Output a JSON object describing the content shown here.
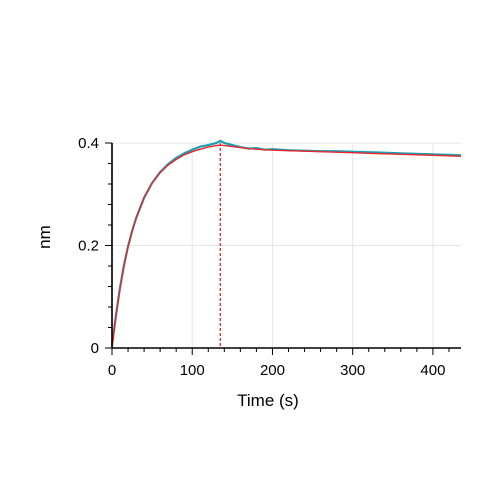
{
  "chart_data": {
    "type": "line",
    "title": "",
    "xlabel": "Time (s)",
    "ylabel": "nm",
    "xlim": [
      0,
      435
    ],
    "ylim": [
      0,
      0.4
    ],
    "x_ticks": [
      0,
      100,
      200,
      300,
      400
    ],
    "x_tick_labels": [
      "0",
      "100",
      "200",
      "300",
      "400"
    ],
    "y_ticks": [
      0,
      0.2,
      0.4
    ],
    "y_tick_labels": [
      "0",
      "0.2",
      "0.4"
    ],
    "grid": true,
    "legend": "none",
    "series": [
      {
        "color": "#1e9fb0",
        "style": "solid",
        "x": [
          0,
          5,
          10,
          15,
          20,
          25,
          30,
          40,
          50,
          60,
          70,
          80,
          90,
          100,
          110,
          120,
          130,
          135,
          140,
          150,
          160,
          170,
          180,
          190,
          200,
          220,
          240,
          260,
          280,
          300,
          320,
          340,
          360,
          380,
          400,
          420,
          435
        ],
        "values": [
          0.005,
          0.065,
          0.118,
          0.162,
          0.198,
          0.228,
          0.253,
          0.293,
          0.322,
          0.343,
          0.359,
          0.371,
          0.38,
          0.387,
          0.393,
          0.396,
          0.4,
          0.404,
          0.4,
          0.396,
          0.392,
          0.389,
          0.39,
          0.387,
          0.388,
          0.386,
          0.385,
          0.384,
          0.384,
          0.383,
          0.382,
          0.381,
          0.38,
          0.379,
          0.378,
          0.377,
          0.376
        ]
      },
      {
        "color": "#e8262b",
        "style": "solid",
        "x": [
          0,
          5,
          10,
          15,
          20,
          25,
          30,
          40,
          50,
          60,
          70,
          80,
          90,
          100,
          110,
          120,
          130,
          135,
          140,
          150,
          160,
          170,
          180,
          190,
          200,
          220,
          240,
          260,
          280,
          300,
          320,
          340,
          360,
          380,
          400,
          420,
          435
        ],
        "values": [
          0.0,
          0.062,
          0.115,
          0.16,
          0.197,
          0.228,
          0.254,
          0.294,
          0.322,
          0.342,
          0.357,
          0.368,
          0.377,
          0.383,
          0.388,
          0.392,
          0.395,
          0.396,
          0.395,
          0.393,
          0.391,
          0.389,
          0.388,
          0.387,
          0.386,
          0.385,
          0.384,
          0.383,
          0.382,
          0.381,
          0.38,
          0.379,
          0.378,
          0.377,
          0.376,
          0.375,
          0.374
        ]
      }
    ],
    "vlines": [
      {
        "x": 0,
        "color": "#e8262b",
        "style": "dashed"
      },
      {
        "x": 135,
        "color": "#e8262b",
        "style": "dashed"
      }
    ]
  }
}
